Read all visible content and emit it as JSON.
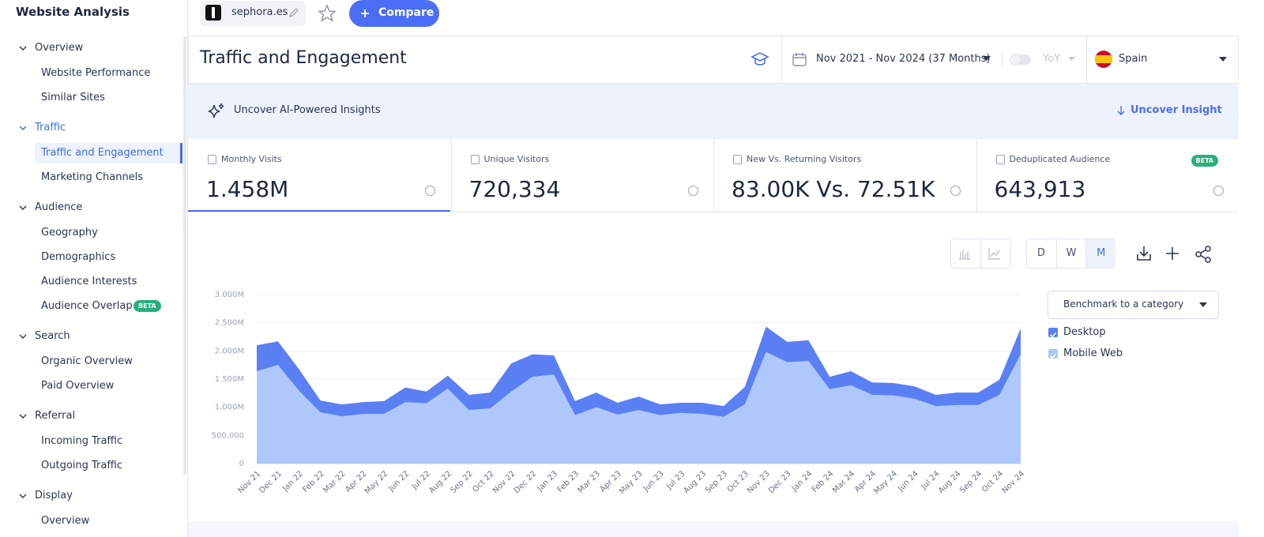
{
  "sidebar": {
    "title": "Website Analysis",
    "sections": [
      {
        "label": "Overview",
        "items": [
          {
            "label": "Website Performance"
          },
          {
            "label": "Similar Sites"
          }
        ]
      },
      {
        "label": "Traffic",
        "items": [
          {
            "label": "Traffic and Engagement"
          },
          {
            "label": "Marketing Channels"
          }
        ]
      },
      {
        "label": "Audience",
        "items": [
          {
            "label": "Geography"
          },
          {
            "label": "Demographics"
          },
          {
            "label": "Audience Interests"
          },
          {
            "label": "Audience Overlap",
            "badge": "BETA"
          }
        ]
      },
      {
        "label": "Search",
        "items": [
          {
            "label": "Organic Overview"
          },
          {
            "label": "Paid Overview"
          }
        ]
      },
      {
        "label": "Referral",
        "items": [
          {
            "label": "Incoming Traffic"
          },
          {
            "label": "Outgoing Traffic"
          }
        ]
      },
      {
        "label": "Display",
        "items": [
          {
            "label": "Overview"
          }
        ]
      }
    ]
  },
  "topbar": {
    "site": "sephora.es",
    "compare": "Compare"
  },
  "header": {
    "title": "Traffic and Engagement",
    "date_range": "Nov 2021 - Nov 2024 (37 Months)",
    "yoy": "YoY",
    "country": "Spain"
  },
  "insights": {
    "label": "Uncover AI-Powered Insights",
    "action": "Uncover Insight"
  },
  "metrics": [
    {
      "label": "Monthly Visits",
      "value": "1.458M"
    },
    {
      "label": "Unique Visitors",
      "value": "720,334"
    },
    {
      "label": "New Vs. Returning Visitors",
      "value": "83.00K Vs. 72.51K"
    },
    {
      "label": "Deduplicated Audience",
      "value": "643,913",
      "badge": "BETA"
    }
  ],
  "controls": {
    "granularity": [
      "D",
      "W",
      "M"
    ],
    "benchmark": "Benchmark to a category"
  },
  "chart_data": {
    "type": "area",
    "stacked": true,
    "categories": [
      "Nov 21",
      "Dec 21",
      "Jan 22",
      "Feb 22",
      "Mar 22",
      "Apr 22",
      "May 22",
      "Jun 22",
      "Jul 22",
      "Aug 22",
      "Sep 22",
      "Oct 22",
      "Nov 22",
      "Dec 22",
      "Jan 23",
      "Feb 23",
      "Mar 23",
      "Apr 23",
      "May 23",
      "Jun 23",
      "Jul 23",
      "Aug 23",
      "Sep 23",
      "Oct 23",
      "Nov 23",
      "Dec 23",
      "Jan 24",
      "Feb 24",
      "Mar 24",
      "Apr 24",
      "May 24",
      "Jun 24",
      "Jul 24",
      "Aug 24",
      "Sep 24",
      "Oct 24",
      "Nov 24"
    ],
    "series": [
      {
        "name": "Mobile Web",
        "color": "#aec8fb",
        "values": [
          1640000,
          1750000,
          1290000,
          910000,
          840000,
          880000,
          880000,
          1090000,
          1070000,
          1330000,
          950000,
          980000,
          1280000,
          1540000,
          1580000,
          860000,
          1000000,
          870000,
          950000,
          860000,
          900000,
          880000,
          830000,
          1050000,
          1980000,
          1800000,
          1820000,
          1320000,
          1390000,
          1220000,
          1210000,
          1150000,
          1020000,
          1040000,
          1040000,
          1220000,
          1940000
        ]
      },
      {
        "name": "Desktop",
        "color": "#5a80f4",
        "values": [
          460000,
          420000,
          380000,
          210000,
          210000,
          210000,
          230000,
          260000,
          210000,
          230000,
          270000,
          280000,
          500000,
          400000,
          340000,
          250000,
          260000,
          210000,
          240000,
          190000,
          180000,
          200000,
          190000,
          310000,
          450000,
          360000,
          370000,
          220000,
          250000,
          220000,
          220000,
          220000,
          200000,
          220000,
          220000,
          270000,
          460000
        ]
      }
    ],
    "ylim": [
      0,
      3000000
    ],
    "yticks": [
      0,
      {
        "value": 500000,
        "label": "500,000"
      },
      {
        "value": 1000000,
        "label": "1.000M"
      },
      {
        "value": 1500000,
        "label": "1.500M"
      },
      {
        "value": 2000000,
        "label": "2.000M"
      },
      {
        "value": 2500000,
        "label": "2.500M"
      },
      {
        "value": 3000000,
        "label": "3.000M"
      }
    ],
    "grid": true
  }
}
